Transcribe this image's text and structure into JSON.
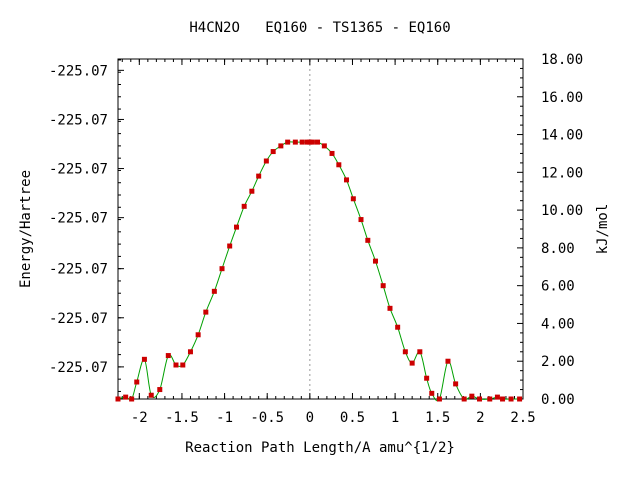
{
  "chart_data": {
    "type": "line",
    "title": "H4CN2O   EQ160 - TS1365 - EQ160",
    "xlabel": "Reaction Path Length/A amu^{1/2}",
    "ylabel_left": "Energy/Hartree",
    "ylabel_right": "kJ/mol",
    "xlim": [
      -2.25,
      2.5
    ],
    "ylim_right": [
      0,
      18.0
    ],
    "x_ticks": [
      {
        "value": -2,
        "label": "-2"
      },
      {
        "value": -1.5,
        "label": "-1.5"
      },
      {
        "value": -1,
        "label": "-1"
      },
      {
        "value": -0.5,
        "label": "-0.5"
      },
      {
        "value": 0,
        "label": "0"
      },
      {
        "value": 0.5,
        "label": "0.5"
      },
      {
        "value": 1,
        "label": "1"
      },
      {
        "value": 1.5,
        "label": "1.5"
      },
      {
        "value": 2,
        "label": "2"
      },
      {
        "value": 2.5,
        "label": "2.5"
      }
    ],
    "y_left_ticks": [
      {
        "value": 1.7,
        "label": "-225.07"
      },
      {
        "value": 4.3,
        "label": "-225.07"
      },
      {
        "value": 6.9,
        "label": "-225.07"
      },
      {
        "value": 9.6,
        "label": "-225.07"
      },
      {
        "value": 12.2,
        "label": "-225.07"
      },
      {
        "value": 14.8,
        "label": "-225.07"
      },
      {
        "value": 17.4,
        "label": "-225.07"
      }
    ],
    "y_right_ticks": [
      {
        "value": 0,
        "label": "0.00"
      },
      {
        "value": 2,
        "label": "2.00"
      },
      {
        "value": 4,
        "label": "4.00"
      },
      {
        "value": 6,
        "label": "6.00"
      },
      {
        "value": 8,
        "label": "8.00"
      },
      {
        "value": 10,
        "label": "10.00"
      },
      {
        "value": 12,
        "label": "12.00"
      },
      {
        "value": 14,
        "label": "14.00"
      },
      {
        "value": 16,
        "label": "16.00"
      },
      {
        "value": 18,
        "label": "18.00"
      }
    ],
    "ts_marker_x": 0,
    "line_color": "#00a000",
    "point_color": "#cc0000",
    "grid": false,
    "series": [
      {
        "x": [
          -2.25,
          -2.16,
          -2.09,
          -2.03,
          -1.94,
          -1.86,
          -1.76,
          -1.66,
          -1.57,
          -1.49,
          -1.4,
          -1.31,
          -1.22,
          -1.12,
          -1.03,
          -0.94,
          -0.86,
          -0.77,
          -0.68,
          -0.6,
          -0.51,
          -0.43,
          -0.34,
          -0.26,
          -0.17,
          -0.09,
          -0.03,
          0.0,
          0.03,
          0.09,
          0.17,
          0.26,
          0.34,
          0.43,
          0.51,
          0.6,
          0.68,
          0.77,
          0.86,
          0.94,
          1.03,
          1.12,
          1.2,
          1.29,
          1.37,
          1.43,
          1.52,
          1.62,
          1.71,
          1.81,
          1.9,
          1.99,
          2.11,
          2.2,
          2.26,
          2.36,
          2.46
        ],
        "y": [
          0.0,
          0.1,
          0.0,
          0.9,
          2.1,
          0.2,
          0.5,
          2.3,
          1.8,
          1.8,
          2.5,
          3.4,
          4.6,
          5.7,
          6.9,
          8.1,
          9.1,
          10.2,
          11.0,
          11.8,
          12.6,
          13.1,
          13.4,
          13.6,
          13.6,
          13.6,
          13.6,
          13.6,
          13.6,
          13.6,
          13.4,
          13.0,
          12.4,
          11.6,
          10.6,
          9.5,
          8.4,
          7.3,
          6.0,
          4.8,
          3.8,
          2.5,
          1.9,
          2.5,
          1.1,
          0.3,
          0.0,
          2.0,
          0.8,
          0.0,
          0.15,
          0.0,
          0.0,
          0.1,
          0.0,
          0.0,
          0.0
        ]
      }
    ]
  }
}
